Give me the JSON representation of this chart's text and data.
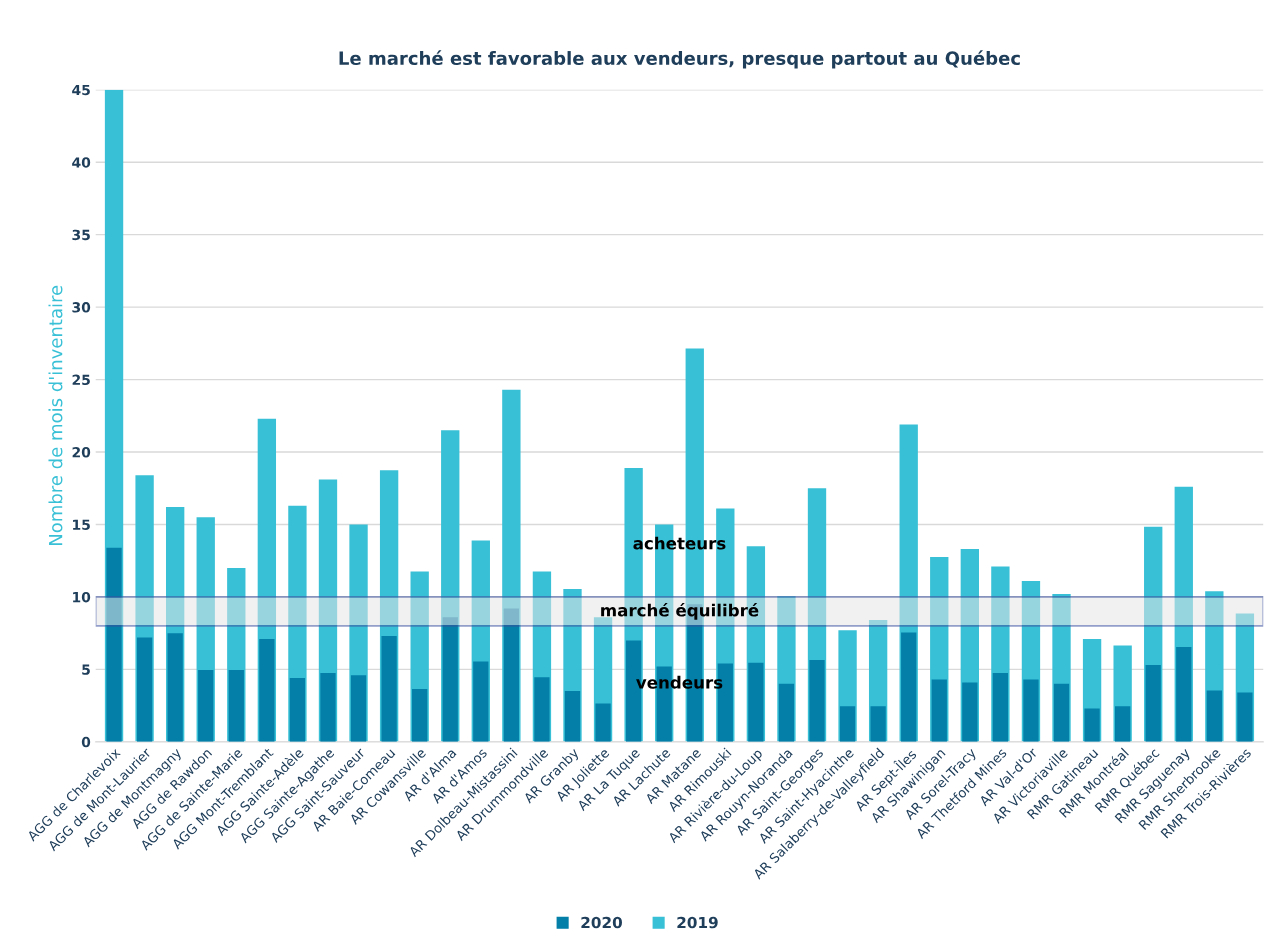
{
  "chart_data": {
    "type": "bar",
    "title": "Le marché est favorable aux vendeurs, presque partout au Québec",
    "ylabel": "Nombre de mois d'inventaire",
    "categories": [
      "AGG de Charlevoix",
      "AGG de Mont-Laurier",
      "AGG de Montmagny",
      "AGG de Rawdon",
      "AGG de Sainte-Marie",
      "AGG Mont-Tremblant",
      "AGG Sainte-Adèle",
      "AGG Sainte-Agathe",
      "AGG Saint-Sauveur",
      "AR Baie-Comeau",
      "AR Cowansville",
      "AR d'Alma",
      "AR d'Amos",
      "AR Dolbeau-Mistassini",
      "AR Drummondville",
      "AR Granby",
      "AR Joliette",
      "AR La Tuque",
      "AR Lachute",
      "AR Matane",
      "AR Rimouski",
      "AR Rivière-du-Loup",
      "AR Rouyn-Noranda",
      "AR Saint-Georges",
      "AR Saint-Hyacinthe",
      "AR Salaberry-de-Valleyfield",
      "AR Sept-Îles",
      "AR Shawinigan",
      "AR Sorel-Tracy",
      "AR Thetford Mines",
      "AR Val-d'Or",
      "AR Victoriaville",
      "RMR Gatineau",
      "RMR Montréal",
      "RMR Québec",
      "RMR Saguenay",
      "RMR Sherbrooke",
      "RMR Trois-Rivières"
    ],
    "series": [
      {
        "name": "2019",
        "color": "#38c0d6",
        "values": [
          45,
          18.4,
          16.2,
          15.5,
          12.0,
          22.3,
          16.3,
          18.1,
          15.0,
          18.75,
          11.75,
          21.5,
          13.9,
          24.3,
          11.75,
          10.55,
          8.6,
          18.9,
          15.0,
          27.15,
          16.1,
          13.5,
          10.05,
          17.5,
          7.7,
          8.4,
          21.9,
          12.75,
          13.3,
          12.1,
          11.1,
          10.2,
          7.1,
          6.65,
          14.85,
          17.6,
          10.4,
          8.85
        ]
      },
      {
        "name": "2020",
        "color": "#037fa8",
        "values": [
          13.4,
          7.2,
          7.5,
          4.95,
          4.95,
          7.1,
          4.4,
          4.75,
          4.6,
          7.3,
          3.65,
          8.6,
          5.55,
          9.2,
          4.45,
          3.5,
          2.65,
          7.0,
          5.2,
          9.5,
          5.4,
          5.45,
          4.0,
          5.65,
          2.45,
          2.45,
          7.55,
          4.3,
          4.1,
          4.75,
          4.3,
          4.0,
          2.3,
          2.45,
          5.3,
          6.55,
          3.55,
          3.4
        ]
      }
    ],
    "ylim": [
      0,
      45
    ],
    "yticks": [
      0,
      5,
      10,
      15,
      20,
      25,
      30,
      35,
      40,
      45
    ],
    "bands": [
      {
        "axis": "y",
        "from": 8,
        "to": 10,
        "label": "marché équilibré",
        "color": "#e6e6e6"
      }
    ],
    "annotations": [
      "acheteurs",
      "vendeurs"
    ],
    "grid": "y",
    "legend": "bottom"
  }
}
